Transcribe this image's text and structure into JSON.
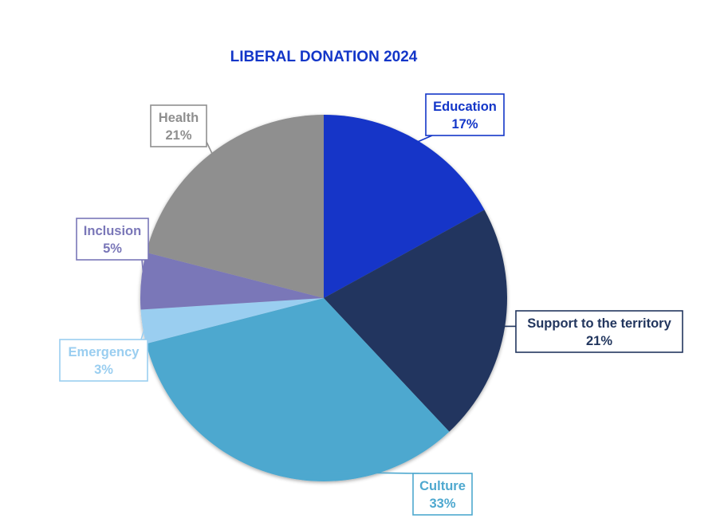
{
  "chart_data": {
    "type": "pie",
    "title": "LIBERAL DONATION 2024",
    "title_color": "#1336C8",
    "slices": [
      {
        "label": "Education",
        "value": 17,
        "value_label": "17%",
        "color": "#1336C8",
        "text_color": "#1336C8"
      },
      {
        "label": "Support to the territory",
        "value": 21,
        "value_label": "21%",
        "color": "#22365E",
        "text_color": "#22365E"
      },
      {
        "label": "Culture",
        "value": 33,
        "value_label": "33%",
        "color": "#4EA8CF",
        "text_color": "#4EA8CF"
      },
      {
        "label": "Emergency",
        "value": 3,
        "value_label": "3%",
        "color": "#9ACEF0",
        "text_color": "#9ACEF0"
      },
      {
        "label": "Inclusion",
        "value": 5,
        "value_label": "5%",
        "color": "#7A77B8",
        "text_color": "#7A77B8"
      },
      {
        "label": "Health",
        "value": 21,
        "value_label": "21%",
        "color": "#8F8F8F",
        "text_color": "#8F8F8F"
      }
    ],
    "start_angle": "12 o'clock",
    "direction": "clockwise",
    "legend": "none",
    "data_labels": "callouts"
  }
}
